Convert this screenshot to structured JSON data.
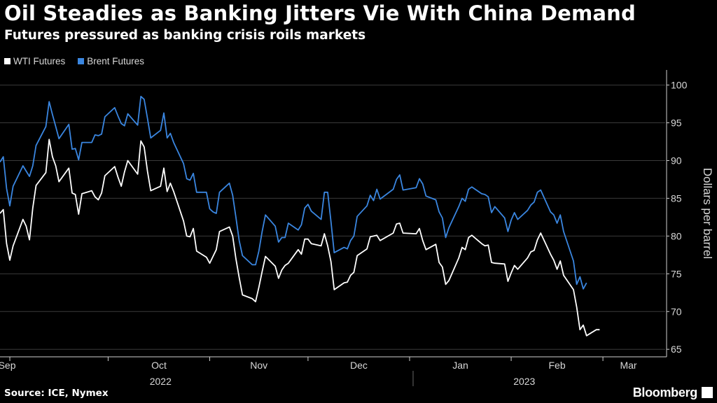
{
  "title": "Oil Steadies as Banking Jitters Vie With China Demand",
  "subtitle": "Futures pressured as banking crisis roils markets",
  "source": "Source: ICE, Nymex",
  "brand": "Bloomberg",
  "colors": {
    "background": "#000000",
    "wti": "#ffffff",
    "brent": "#3a86e0",
    "grid": "#3a3a3a",
    "axis": "#cfcfcf"
  },
  "chart_data": {
    "type": "line",
    "ylabel": "Dollars per barrel",
    "ylim": [
      64,
      102
    ],
    "yticks": [
      65,
      70,
      75,
      80,
      85,
      90,
      95,
      100
    ],
    "grid": true,
    "legend_position": "top-left",
    "x_start": "2022-08-29",
    "x_end": "2023-03-20",
    "month_ticks": [
      {
        "date": "2022-09-01",
        "label": "Sep"
      },
      {
        "date": "2022-10-01",
        "label": "Oct"
      },
      {
        "date": "2022-11-01",
        "label": "Nov"
      },
      {
        "date": "2022-12-01",
        "label": "Dec"
      },
      {
        "date": "2023-01-01",
        "label": "Jan"
      },
      {
        "date": "2023-02-01",
        "label": "Feb"
      },
      {
        "date": "2023-03-01",
        "label": "Mar"
      }
    ],
    "year_labels": [
      {
        "label": "2022",
        "date": "2022-10-17"
      },
      {
        "label": "2023",
        "date": "2023-02-05"
      }
    ],
    "year_divider": "2023-01-01",
    "series": [
      {
        "name": "WTI Futures",
        "color": "#ffffff",
        "points": [
          [
            "2022-08-29",
            83.0
          ],
          [
            "2022-08-30",
            83.5
          ],
          [
            "2022-08-31",
            79.0
          ],
          [
            "2022-09-01",
            76.8
          ],
          [
            "2022-09-02",
            78.7
          ],
          [
            "2022-09-05",
            82.2
          ],
          [
            "2022-09-06",
            81.3
          ],
          [
            "2022-09-07",
            79.5
          ],
          [
            "2022-09-08",
            83.7
          ],
          [
            "2022-09-09",
            86.7
          ],
          [
            "2022-09-12",
            88.4
          ],
          [
            "2022-09-13",
            92.8
          ],
          [
            "2022-09-14",
            90.5
          ],
          [
            "2022-09-15",
            89.3
          ],
          [
            "2022-09-16",
            87.2
          ],
          [
            "2022-09-19",
            89.0
          ],
          [
            "2022-09-20",
            85.7
          ],
          [
            "2022-09-21",
            85.5
          ],
          [
            "2022-09-22",
            82.9
          ],
          [
            "2022-09-23",
            85.6
          ],
          [
            "2022-09-26",
            86.0
          ],
          [
            "2022-09-27",
            85.2
          ],
          [
            "2022-09-28",
            84.8
          ],
          [
            "2022-09-29",
            85.7
          ],
          [
            "2022-09-30",
            88.0
          ],
          [
            "2022-10-03",
            89.2
          ],
          [
            "2022-10-04",
            87.8
          ],
          [
            "2022-10-05",
            86.6
          ],
          [
            "2022-10-06",
            88.5
          ],
          [
            "2022-10-07",
            90.0
          ],
          [
            "2022-10-10",
            88.2
          ],
          [
            "2022-10-11",
            92.6
          ],
          [
            "2022-10-12",
            91.8
          ],
          [
            "2022-10-13",
            88.6
          ],
          [
            "2022-10-14",
            86.0
          ],
          [
            "2022-10-17",
            86.6
          ],
          [
            "2022-10-18",
            89.0
          ],
          [
            "2022-10-19",
            85.9
          ],
          [
            "2022-10-20",
            87.0
          ],
          [
            "2022-10-21",
            85.9
          ],
          [
            "2022-10-24",
            82.0
          ],
          [
            "2022-10-25",
            80.0
          ],
          [
            "2022-10-26",
            79.9
          ],
          [
            "2022-10-27",
            81.0
          ],
          [
            "2022-10-28",
            78.0
          ],
          [
            "2022-10-31",
            77.2
          ],
          [
            "2022-11-01",
            76.4
          ],
          [
            "2022-11-02",
            77.3
          ],
          [
            "2022-11-03",
            78.2
          ],
          [
            "2022-11-04",
            80.6
          ],
          [
            "2022-11-07",
            81.2
          ],
          [
            "2022-11-08",
            80.0
          ],
          [
            "2022-11-09",
            77.0
          ],
          [
            "2022-11-10",
            74.5
          ],
          [
            "2022-11-11",
            72.2
          ],
          [
            "2022-11-14",
            71.7
          ],
          [
            "2022-11-15",
            71.3
          ],
          [
            "2022-11-16",
            73.2
          ],
          [
            "2022-11-17",
            75.3
          ],
          [
            "2022-11-18",
            77.3
          ],
          [
            "2022-11-21",
            76.0
          ],
          [
            "2022-11-22",
            74.4
          ],
          [
            "2022-11-23",
            75.5
          ],
          [
            "2022-11-24",
            76.1
          ],
          [
            "2022-11-25",
            76.4
          ],
          [
            "2022-11-28",
            78.2
          ],
          [
            "2022-11-29",
            77.6
          ],
          [
            "2022-11-30",
            79.6
          ],
          [
            "2022-12-01",
            79.6
          ],
          [
            "2022-12-02",
            79.0
          ],
          [
            "2022-12-05",
            78.7
          ],
          [
            "2022-12-06",
            80.3
          ],
          [
            "2022-12-07",
            78.7
          ],
          [
            "2022-12-08",
            76.6
          ],
          [
            "2022-12-09",
            72.9
          ],
          [
            "2022-12-12",
            73.8
          ],
          [
            "2022-12-13",
            73.9
          ],
          [
            "2022-12-14",
            74.8
          ],
          [
            "2022-12-15",
            75.2
          ],
          [
            "2022-12-16",
            77.4
          ],
          [
            "2022-12-19",
            78.3
          ],
          [
            "2022-12-20",
            79.9
          ],
          [
            "2022-12-21",
            80.0
          ],
          [
            "2022-12-22",
            80.1
          ],
          [
            "2022-12-23",
            79.4
          ],
          [
            "2022-12-27",
            80.4
          ],
          [
            "2022-12-28",
            81.6
          ],
          [
            "2022-12-29",
            81.7
          ],
          [
            "2022-12-30",
            80.4
          ],
          [
            "2023-01-03",
            80.3
          ],
          [
            "2023-01-04",
            81.0
          ],
          [
            "2023-01-05",
            79.4
          ],
          [
            "2023-01-06",
            78.2
          ],
          [
            "2023-01-09",
            78.9
          ],
          [
            "2023-01-10",
            76.5
          ],
          [
            "2023-01-11",
            75.9
          ],
          [
            "2023-01-12",
            73.6
          ],
          [
            "2023-01-13",
            74.1
          ],
          [
            "2023-01-16",
            77.1
          ],
          [
            "2023-01-17",
            78.5
          ],
          [
            "2023-01-18",
            78.2
          ],
          [
            "2023-01-19",
            79.8
          ],
          [
            "2023-01-20",
            80.1
          ],
          [
            "2023-01-23",
            79.0
          ],
          [
            "2023-01-24",
            78.7
          ],
          [
            "2023-01-25",
            78.8
          ],
          [
            "2023-01-26",
            76.5
          ],
          [
            "2023-01-27",
            76.4
          ],
          [
            "2023-01-30",
            76.3
          ],
          [
            "2023-01-31",
            74.0
          ],
          [
            "2023-02-01",
            75.1
          ],
          [
            "2023-02-02",
            76.1
          ],
          [
            "2023-02-03",
            75.6
          ],
          [
            "2023-02-06",
            77.1
          ],
          [
            "2023-02-07",
            77.9
          ],
          [
            "2023-02-08",
            78.1
          ],
          [
            "2023-02-09",
            79.5
          ],
          [
            "2023-02-10",
            80.4
          ],
          [
            "2023-02-13",
            77.6
          ],
          [
            "2023-02-14",
            76.8
          ],
          [
            "2023-02-15",
            75.6
          ],
          [
            "2023-02-16",
            76.7
          ],
          [
            "2023-02-17",
            74.8
          ],
          [
            "2023-02-20",
            72.9
          ],
          [
            "2023-02-21",
            70.6
          ],
          [
            "2023-02-22",
            67.6
          ],
          [
            "2023-02-23",
            68.2
          ],
          [
            "2023-02-24",
            66.8
          ],
          [
            "2023-02-27",
            67.6
          ],
          [
            "2023-02-28",
            67.6
          ]
        ]
      },
      {
        "name": "Brent Futures",
        "color": "#3a86e0",
        "points": [
          [
            "2022-08-29",
            89.8
          ],
          [
            "2022-08-30",
            90.5
          ],
          [
            "2022-08-31",
            86.3
          ],
          [
            "2022-09-01",
            84.0
          ],
          [
            "2022-09-02",
            86.6
          ],
          [
            "2022-09-05",
            89.3
          ],
          [
            "2022-09-06",
            88.6
          ],
          [
            "2022-09-07",
            87.9
          ],
          [
            "2022-09-08",
            89.3
          ],
          [
            "2022-09-09",
            92.0
          ],
          [
            "2022-09-12",
            94.5
          ],
          [
            "2022-09-13",
            97.8
          ],
          [
            "2022-09-14",
            96.1
          ],
          [
            "2022-09-15",
            94.5
          ],
          [
            "2022-09-16",
            92.9
          ],
          [
            "2022-09-19",
            94.8
          ],
          [
            "2022-09-20",
            91.5
          ],
          [
            "2022-09-21",
            91.6
          ],
          [
            "2022-09-22",
            90.1
          ],
          [
            "2022-09-23",
            92.4
          ],
          [
            "2022-09-26",
            92.4
          ],
          [
            "2022-09-27",
            93.4
          ],
          [
            "2022-09-28",
            93.3
          ],
          [
            "2022-09-29",
            93.5
          ],
          [
            "2022-09-30",
            95.8
          ],
          [
            "2022-10-03",
            97.0
          ],
          [
            "2022-10-04",
            95.9
          ],
          [
            "2022-10-05",
            94.9
          ],
          [
            "2022-10-06",
            94.6
          ],
          [
            "2022-10-07",
            96.2
          ],
          [
            "2022-10-10",
            94.7
          ],
          [
            "2022-10-11",
            98.5
          ],
          [
            "2022-10-12",
            98.1
          ],
          [
            "2022-10-13",
            95.6
          ],
          [
            "2022-10-14",
            93.0
          ],
          [
            "2022-10-17",
            94.0
          ],
          [
            "2022-10-18",
            96.3
          ],
          [
            "2022-10-19",
            93.0
          ],
          [
            "2022-10-20",
            93.6
          ],
          [
            "2022-10-21",
            92.4
          ],
          [
            "2022-10-24",
            89.6
          ],
          [
            "2022-10-25",
            87.6
          ],
          [
            "2022-10-26",
            87.4
          ],
          [
            "2022-10-27",
            88.3
          ],
          [
            "2022-10-28",
            85.8
          ],
          [
            "2022-10-31",
            85.8
          ],
          [
            "2022-11-01",
            83.6
          ],
          [
            "2022-11-02",
            83.2
          ],
          [
            "2022-11-03",
            83.0
          ],
          [
            "2022-11-04",
            85.8
          ],
          [
            "2022-11-07",
            87.0
          ],
          [
            "2022-11-08",
            85.4
          ],
          [
            "2022-11-09",
            82.5
          ],
          [
            "2022-11-10",
            79.4
          ],
          [
            "2022-11-11",
            77.4
          ],
          [
            "2022-11-14",
            76.2
          ],
          [
            "2022-11-15",
            76.2
          ],
          [
            "2022-11-16",
            78.0
          ],
          [
            "2022-11-17",
            80.6
          ],
          [
            "2022-11-18",
            82.8
          ],
          [
            "2022-11-21",
            81.3
          ],
          [
            "2022-11-22",
            79.2
          ],
          [
            "2022-11-23",
            79.8
          ],
          [
            "2022-11-24",
            79.8
          ],
          [
            "2022-11-25",
            81.7
          ],
          [
            "2022-11-28",
            80.8
          ],
          [
            "2022-11-29",
            81.5
          ],
          [
            "2022-11-30",
            83.7
          ],
          [
            "2022-12-01",
            84.2
          ],
          [
            "2022-12-02",
            83.3
          ],
          [
            "2022-12-05",
            82.2
          ],
          [
            "2022-12-06",
            85.8
          ],
          [
            "2022-12-07",
            85.8
          ],
          [
            "2022-12-08",
            81.9
          ],
          [
            "2022-12-09",
            77.8
          ],
          [
            "2022-12-12",
            78.5
          ],
          [
            "2022-12-13",
            78.3
          ],
          [
            "2022-12-14",
            79.4
          ],
          [
            "2022-12-15",
            80.0
          ],
          [
            "2022-12-16",
            82.6
          ],
          [
            "2022-12-19",
            84.0
          ],
          [
            "2022-12-20",
            85.4
          ],
          [
            "2022-12-21",
            84.7
          ],
          [
            "2022-12-22",
            86.2
          ],
          [
            "2022-12-23",
            84.9
          ],
          [
            "2022-12-27",
            86.2
          ],
          [
            "2022-12-28",
            87.5
          ],
          [
            "2022-12-29",
            88.1
          ],
          [
            "2022-12-30",
            86.1
          ],
          [
            "2023-01-03",
            86.4
          ],
          [
            "2023-01-04",
            87.6
          ],
          [
            "2023-01-05",
            86.9
          ],
          [
            "2023-01-06",
            85.3
          ],
          [
            "2023-01-09",
            84.8
          ],
          [
            "2023-01-10",
            83.2
          ],
          [
            "2023-01-11",
            82.4
          ],
          [
            "2023-01-12",
            79.8
          ],
          [
            "2023-01-13",
            81.1
          ],
          [
            "2023-01-16",
            83.9
          ],
          [
            "2023-01-17",
            85.0
          ],
          [
            "2023-01-18",
            84.6
          ],
          [
            "2023-01-19",
            86.2
          ],
          [
            "2023-01-20",
            86.5
          ],
          [
            "2023-01-23",
            85.6
          ],
          [
            "2023-01-24",
            85.5
          ],
          [
            "2023-01-25",
            85.2
          ],
          [
            "2023-01-26",
            83.1
          ],
          [
            "2023-01-27",
            83.9
          ],
          [
            "2023-01-30",
            82.4
          ],
          [
            "2023-01-31",
            80.6
          ],
          [
            "2023-02-01",
            82.1
          ],
          [
            "2023-02-02",
            83.1
          ],
          [
            "2023-02-03",
            82.2
          ],
          [
            "2023-02-06",
            83.4
          ],
          [
            "2023-02-07",
            84.1
          ],
          [
            "2023-02-08",
            84.5
          ],
          [
            "2023-02-09",
            85.8
          ],
          [
            "2023-02-10",
            86.1
          ],
          [
            "2023-02-13",
            83.2
          ],
          [
            "2023-02-14",
            82.8
          ],
          [
            "2023-02-15",
            81.7
          ],
          [
            "2023-02-16",
            82.8
          ],
          [
            "2023-02-17",
            80.6
          ],
          [
            "2023-02-20",
            76.7
          ],
          [
            "2023-02-21",
            73.6
          ],
          [
            "2023-02-22",
            74.6
          ],
          [
            "2023-02-23",
            73.0
          ],
          [
            "2023-02-24",
            73.8
          ]
        ]
      }
    ]
  }
}
